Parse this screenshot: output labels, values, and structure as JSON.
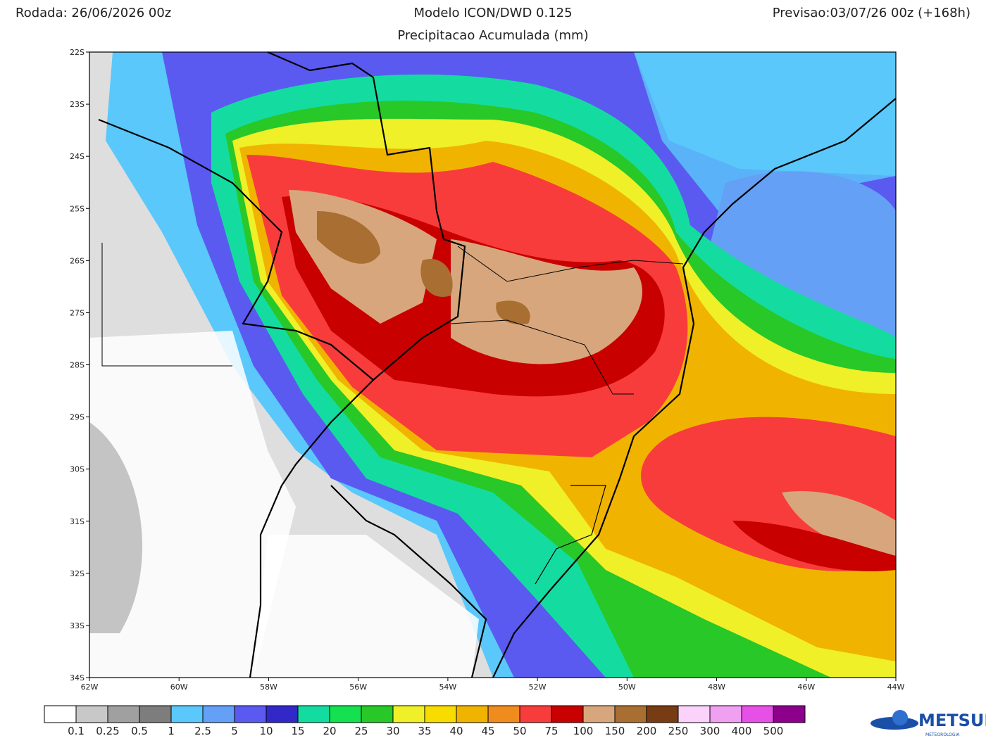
{
  "header": {
    "run": "Rodada: 26/06/2026 00z",
    "model": "Modelo ICON/DWD 0.125",
    "forecast": "Previsao:03/07/26 00z (+168h)",
    "subtitle": "Precipitacao Acumulada (mm)"
  },
  "map": {
    "lat_labels": [
      "22S",
      "23S",
      "24S",
      "25S",
      "26S",
      "27S",
      "28S",
      "29S",
      "30S",
      "31S",
      "32S",
      "33S",
      "34S"
    ],
    "lon_labels": [
      "62W",
      "60W",
      "58W",
      "56W",
      "54W",
      "52W",
      "50W",
      "48W",
      "46W",
      "44W"
    ]
  },
  "legend": {
    "colors": [
      "#ffffff",
      "#c8c8c8",
      "#a0a0a0",
      "#7d7d7d",
      "#5ac8fa",
      "#64a0f5",
      "#5a5af0",
      "#3228c8",
      "#14dca0",
      "#14e050",
      "#28c828",
      "#f0f028",
      "#f8dc00",
      "#f0b400",
      "#f08c1e",
      "#f83c3c",
      "#c80000",
      "#d8a67c",
      "#a86e32",
      "#783c14",
      "#fad2fa",
      "#f0a0f0",
      "#e650e6",
      "#8c008c"
    ],
    "labels": [
      "0.1",
      "0.25",
      "0.5",
      "1",
      "2.5",
      "5",
      "10",
      "15",
      "20",
      "25",
      "30",
      "35",
      "40",
      "45",
      "50",
      "75",
      "100",
      "150",
      "200",
      "250",
      "300",
      "400",
      "500"
    ]
  },
  "logo": {
    "name": "METSUL",
    "tagline": "METEOROLOGIA"
  }
}
